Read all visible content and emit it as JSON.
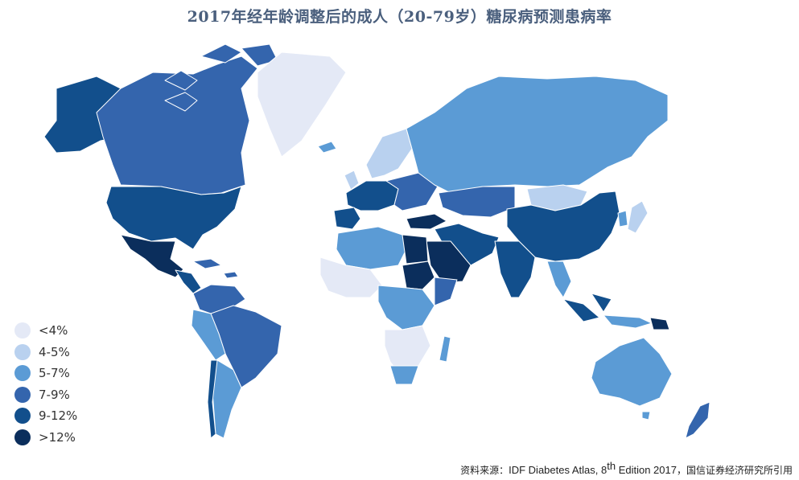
{
  "title": "2017年经年龄调整后的成人（20-79岁）糖尿病预测患病率",
  "colors": {
    "c1": "#e4e9f6",
    "c2": "#b9d1ef",
    "c3": "#5b9bd5",
    "c4": "#3465ad",
    "c5": "#124f8c",
    "c6": "#0b2e5c",
    "border": "#ffffff"
  },
  "legend": [
    {
      "label": "<4%",
      "color": "#e4e9f6"
    },
    {
      "label": "4-5%",
      "color": "#b9d1ef"
    },
    {
      "label": "5-7%",
      "color": "#5b9bd5"
    },
    {
      "label": "7-9%",
      "color": "#3465ad"
    },
    {
      "label": "9-12%",
      "color": "#124f8c"
    },
    {
      "label": ">12%",
      "color": "#0b2e5c"
    }
  ],
  "source": {
    "prefix": "资料来源：",
    "name": "IDF Diabetes Atlas, 8",
    "sup": "th",
    "edition": " Edition 2017",
    "suffix": "，国信证券经济研究所引用"
  }
}
